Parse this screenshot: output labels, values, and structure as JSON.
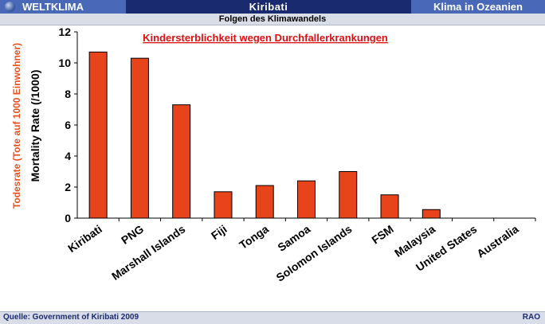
{
  "header": {
    "left_label": "WELTKLIMA",
    "center_label": "Kiribati",
    "right_label": "Klima in Ozeanien",
    "subtitle": "Folgen des Klimawandels"
  },
  "footer": {
    "source": "Quelle: Government of Kiribati 2009",
    "logo": "RAO"
  },
  "colors": {
    "bar": "#e8441c",
    "title": "#e01010",
    "ylabel_de": "#e8501c"
  },
  "chart_data": {
    "type": "bar",
    "title": "Kindersterblichkeit wegen Durchfallerkrankungen",
    "ylabel": "Mortality Rate (/1000)",
    "ylabel_de": "Todesrate (Tote auf 1000 Einwohner)",
    "xlabel": "",
    "categories": [
      "Kiribati",
      "PNG",
      "Marshall Islands",
      "Fiji",
      "Tonga",
      "Samoa",
      "Solomon Islands",
      "FSM",
      "Malaysia",
      "United States",
      "Australia"
    ],
    "values": [
      10.7,
      10.3,
      7.3,
      1.7,
      2.1,
      2.4,
      3.0,
      1.5,
      0.55,
      0,
      0
    ],
    "ylim": [
      0,
      12
    ],
    "yticks": [
      "0",
      "2",
      "4",
      "6",
      "8",
      "10",
      "12"
    ],
    "grid": false,
    "legend": "none"
  }
}
